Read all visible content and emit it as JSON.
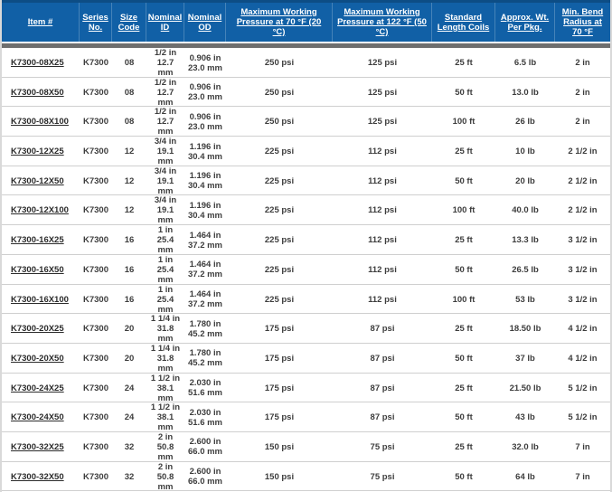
{
  "colors": {
    "header_bg": "#1160a6",
    "header_top_border": "#0d4d85",
    "header_text": "#ffffff",
    "separator_bar": "#6e6e6e",
    "row_divider": "#cfcfcf",
    "body_text": "#3d3d3d",
    "item_link": "#2b2b2b",
    "edge_strip": "#d9d9d9"
  },
  "table": {
    "columns": [
      {
        "label": "Item #"
      },
      {
        "label": "Series No."
      },
      {
        "label": "Size Code"
      },
      {
        "label": "Nominal ID"
      },
      {
        "label": "Nominal OD"
      },
      {
        "label": "Maximum Working Pressure at 70 °F (20 °C)"
      },
      {
        "label": "Maximum Working Pressure at 122 °F (50 °C)"
      },
      {
        "label": "Standard Length Coils"
      },
      {
        "label": "Approx. Wt. Per Pkg."
      },
      {
        "label": "Min. Bend Radius at 70 °F"
      }
    ],
    "rows": [
      {
        "item": "K7300-08X25",
        "series": "K7300",
        "size_code": "08",
        "nominal_id": [
          "1/2 in",
          "12.7 mm"
        ],
        "nominal_od": [
          "0.906 in",
          "23.0 mm"
        ],
        "mwp_70f": "250 psi",
        "mwp_122f": "125 psi",
        "length_coils": "25 ft",
        "weight": "6.5 lb",
        "bend_radius": "2 in"
      },
      {
        "item": "K7300-08X50",
        "series": "K7300",
        "size_code": "08",
        "nominal_id": [
          "1/2 in",
          "12.7 mm"
        ],
        "nominal_od": [
          "0.906 in",
          "23.0 mm"
        ],
        "mwp_70f": "250 psi",
        "mwp_122f": "125 psi",
        "length_coils": "50 ft",
        "weight": "13.0 lb",
        "bend_radius": "2 in"
      },
      {
        "item": "K7300-08X100",
        "series": "K7300",
        "size_code": "08",
        "nominal_id": [
          "1/2 in",
          "12.7 mm"
        ],
        "nominal_od": [
          "0.906 in",
          "23.0 mm"
        ],
        "mwp_70f": "250 psi",
        "mwp_122f": "125 psi",
        "length_coils": "100 ft",
        "weight": "26 lb",
        "bend_radius": "2 in"
      },
      {
        "item": "K7300-12X25",
        "series": "K7300",
        "size_code": "12",
        "nominal_id": [
          "3/4 in",
          "19.1 mm"
        ],
        "nominal_od": [
          "1.196 in",
          "30.4 mm"
        ],
        "mwp_70f": "225 psi",
        "mwp_122f": "112 psi",
        "length_coils": "25 ft",
        "weight": "10 lb",
        "bend_radius": "2 1/2 in"
      },
      {
        "item": "K7300-12X50",
        "series": "K7300",
        "size_code": "12",
        "nominal_id": [
          "3/4 in",
          "19.1 mm"
        ],
        "nominal_od": [
          "1.196 in",
          "30.4 mm"
        ],
        "mwp_70f": "225 psi",
        "mwp_122f": "112 psi",
        "length_coils": "50 ft",
        "weight": "20 lb",
        "bend_radius": "2 1/2 in"
      },
      {
        "item": "K7300-12X100",
        "series": "K7300",
        "size_code": "12",
        "nominal_id": [
          "3/4 in",
          "19.1 mm"
        ],
        "nominal_od": [
          "1.196 in",
          "30.4 mm"
        ],
        "mwp_70f": "225 psi",
        "mwp_122f": "112 psi",
        "length_coils": "100 ft",
        "weight": "40.0 lb",
        "bend_radius": "2 1/2 in"
      },
      {
        "item": "K7300-16X25",
        "series": "K7300",
        "size_code": "16",
        "nominal_id": [
          "1 in",
          "25.4 mm"
        ],
        "nominal_od": [
          "1.464 in",
          "37.2 mm"
        ],
        "mwp_70f": "225 psi",
        "mwp_122f": "112 psi",
        "length_coils": "25 ft",
        "weight": "13.3 lb",
        "bend_radius": "3 1/2 in"
      },
      {
        "item": "K7300-16X50",
        "series": "K7300",
        "size_code": "16",
        "nominal_id": [
          "1 in",
          "25.4 mm"
        ],
        "nominal_od": [
          "1.464 in",
          "37.2 mm"
        ],
        "mwp_70f": "225 psi",
        "mwp_122f": "112 psi",
        "length_coils": "50 ft",
        "weight": "26.5 lb",
        "bend_radius": "3 1/2 in"
      },
      {
        "item": "K7300-16X100",
        "series": "K7300",
        "size_code": "16",
        "nominal_id": [
          "1 in",
          "25.4 mm"
        ],
        "nominal_od": [
          "1.464 in",
          "37.2 mm"
        ],
        "mwp_70f": "225 psi",
        "mwp_122f": "112 psi",
        "length_coils": "100 ft",
        "weight": "53 lb",
        "bend_radius": "3 1/2 in"
      },
      {
        "item": "K7300-20X25",
        "series": "K7300",
        "size_code": "20",
        "nominal_id": [
          "1 1/4 in",
          "31.8 mm"
        ],
        "nominal_od": [
          "1.780 in",
          "45.2 mm"
        ],
        "mwp_70f": "175 psi",
        "mwp_122f": "87 psi",
        "length_coils": "25 ft",
        "weight": "18.50 lb",
        "bend_radius": "4 1/2 in"
      },
      {
        "item": "K7300-20X50",
        "series": "K7300",
        "size_code": "20",
        "nominal_id": [
          "1 1/4 in",
          "31.8 mm"
        ],
        "nominal_od": [
          "1.780 in",
          "45.2 mm"
        ],
        "mwp_70f": "175 psi",
        "mwp_122f": "87 psi",
        "length_coils": "50 ft",
        "weight": "37 lb",
        "bend_radius": "4 1/2 in"
      },
      {
        "item": "K7300-24X25",
        "series": "K7300",
        "size_code": "24",
        "nominal_id": [
          "1 1/2 in",
          "38.1 mm"
        ],
        "nominal_od": [
          "2.030 in",
          "51.6 mm"
        ],
        "mwp_70f": "175 psi",
        "mwp_122f": "87 psi",
        "length_coils": "25 ft",
        "weight": "21.50 lb",
        "bend_radius": "5 1/2 in"
      },
      {
        "item": "K7300-24X50",
        "series": "K7300",
        "size_code": "24",
        "nominal_id": [
          "1 1/2 in",
          "38.1 mm"
        ],
        "nominal_od": [
          "2.030 in",
          "51.6 mm"
        ],
        "mwp_70f": "175 psi",
        "mwp_122f": "87 psi",
        "length_coils": "50 ft",
        "weight": "43 lb",
        "bend_radius": "5 1/2 in"
      },
      {
        "item": "K7300-32X25",
        "series": "K7300",
        "size_code": "32",
        "nominal_id": [
          "2 in",
          "50.8 mm"
        ],
        "nominal_od": [
          "2.600 in",
          "66.0 mm"
        ],
        "mwp_70f": "150 psi",
        "mwp_122f": "75 psi",
        "length_coils": "25 ft",
        "weight": "32.0 lb",
        "bend_radius": "7 in"
      },
      {
        "item": "K7300-32X50",
        "series": "K7300",
        "size_code": "32",
        "nominal_id": [
          "2 in",
          "50.8 mm"
        ],
        "nominal_od": [
          "2.600 in",
          "66.0 mm"
        ],
        "mwp_70f": "150 psi",
        "mwp_122f": "75 psi",
        "length_coils": "50 ft",
        "weight": "64 lb",
        "bend_radius": "7 in"
      }
    ]
  }
}
